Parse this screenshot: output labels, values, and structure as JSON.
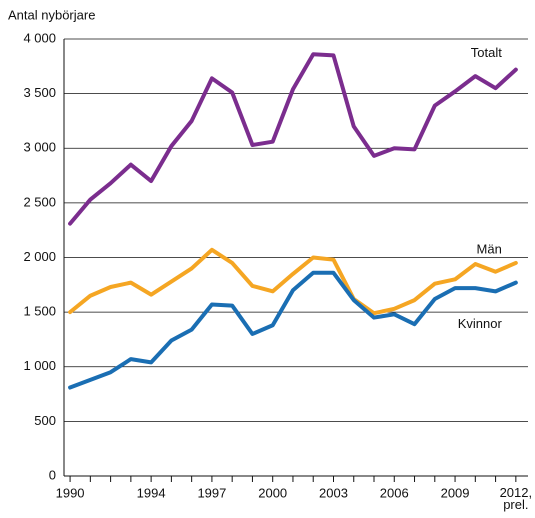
{
  "chart_data": {
    "type": "line",
    "y_label": "Antal nybörjare",
    "x": [
      1990,
      1991,
      1992,
      1993,
      1994,
      1995,
      1996,
      1997,
      1998,
      1999,
      2000,
      2001,
      2002,
      2003,
      2004,
      2005,
      2006,
      2007,
      2008,
      2009,
      2010,
      2011,
      2012
    ],
    "xlim": [
      1989.7,
      2012.6
    ],
    "xticks": [
      1990,
      1994,
      1997,
      2000,
      2003,
      2006,
      2009,
      {
        "value": 2012,
        "label": "2012,\nprel."
      }
    ],
    "ylim": [
      0,
      4000
    ],
    "yticks": [
      0,
      500,
      {
        "value": 1000,
        "label": "1 000"
      },
      {
        "value": 1500,
        "label": "1 500"
      },
      {
        "value": 2000,
        "label": "2 000"
      },
      {
        "value": 2500,
        "label": "2 500"
      },
      {
        "value": 3000,
        "label": "3 000"
      },
      {
        "value": 3500,
        "label": "3 500"
      },
      {
        "value": 4000,
        "label": "4 000"
      }
    ],
    "grid": true,
    "series": [
      {
        "name": "Totalt",
        "color": "#7b2d8e",
        "values": [
          2310,
          2530,
          2680,
          2850,
          2700,
          3020,
          3250,
          3640,
          3510,
          3030,
          3060,
          3540,
          3860,
          3850,
          3200,
          2930,
          3000,
          2990,
          3390,
          3520,
          3660,
          3550,
          3720
        ]
      },
      {
        "name": "Män",
        "color": "#f5a623",
        "values": [
          1500,
          1650,
          1730,
          1770,
          1660,
          1780,
          1900,
          2070,
          1950,
          1740,
          1690,
          1850,
          2000,
          1980,
          1620,
          1490,
          1530,
          1610,
          1760,
          1800,
          1940,
          1870,
          1950
        ]
      },
      {
        "name": "Kvinnor",
        "color": "#1a6eb3",
        "values": [
          810,
          880,
          950,
          1070,
          1040,
          1240,
          1340,
          1570,
          1560,
          1300,
          1380,
          1700,
          1860,
          1860,
          1610,
          1450,
          1480,
          1390,
          1620,
          1720,
          1720,
          1690,
          1770
        ]
      }
    ]
  }
}
